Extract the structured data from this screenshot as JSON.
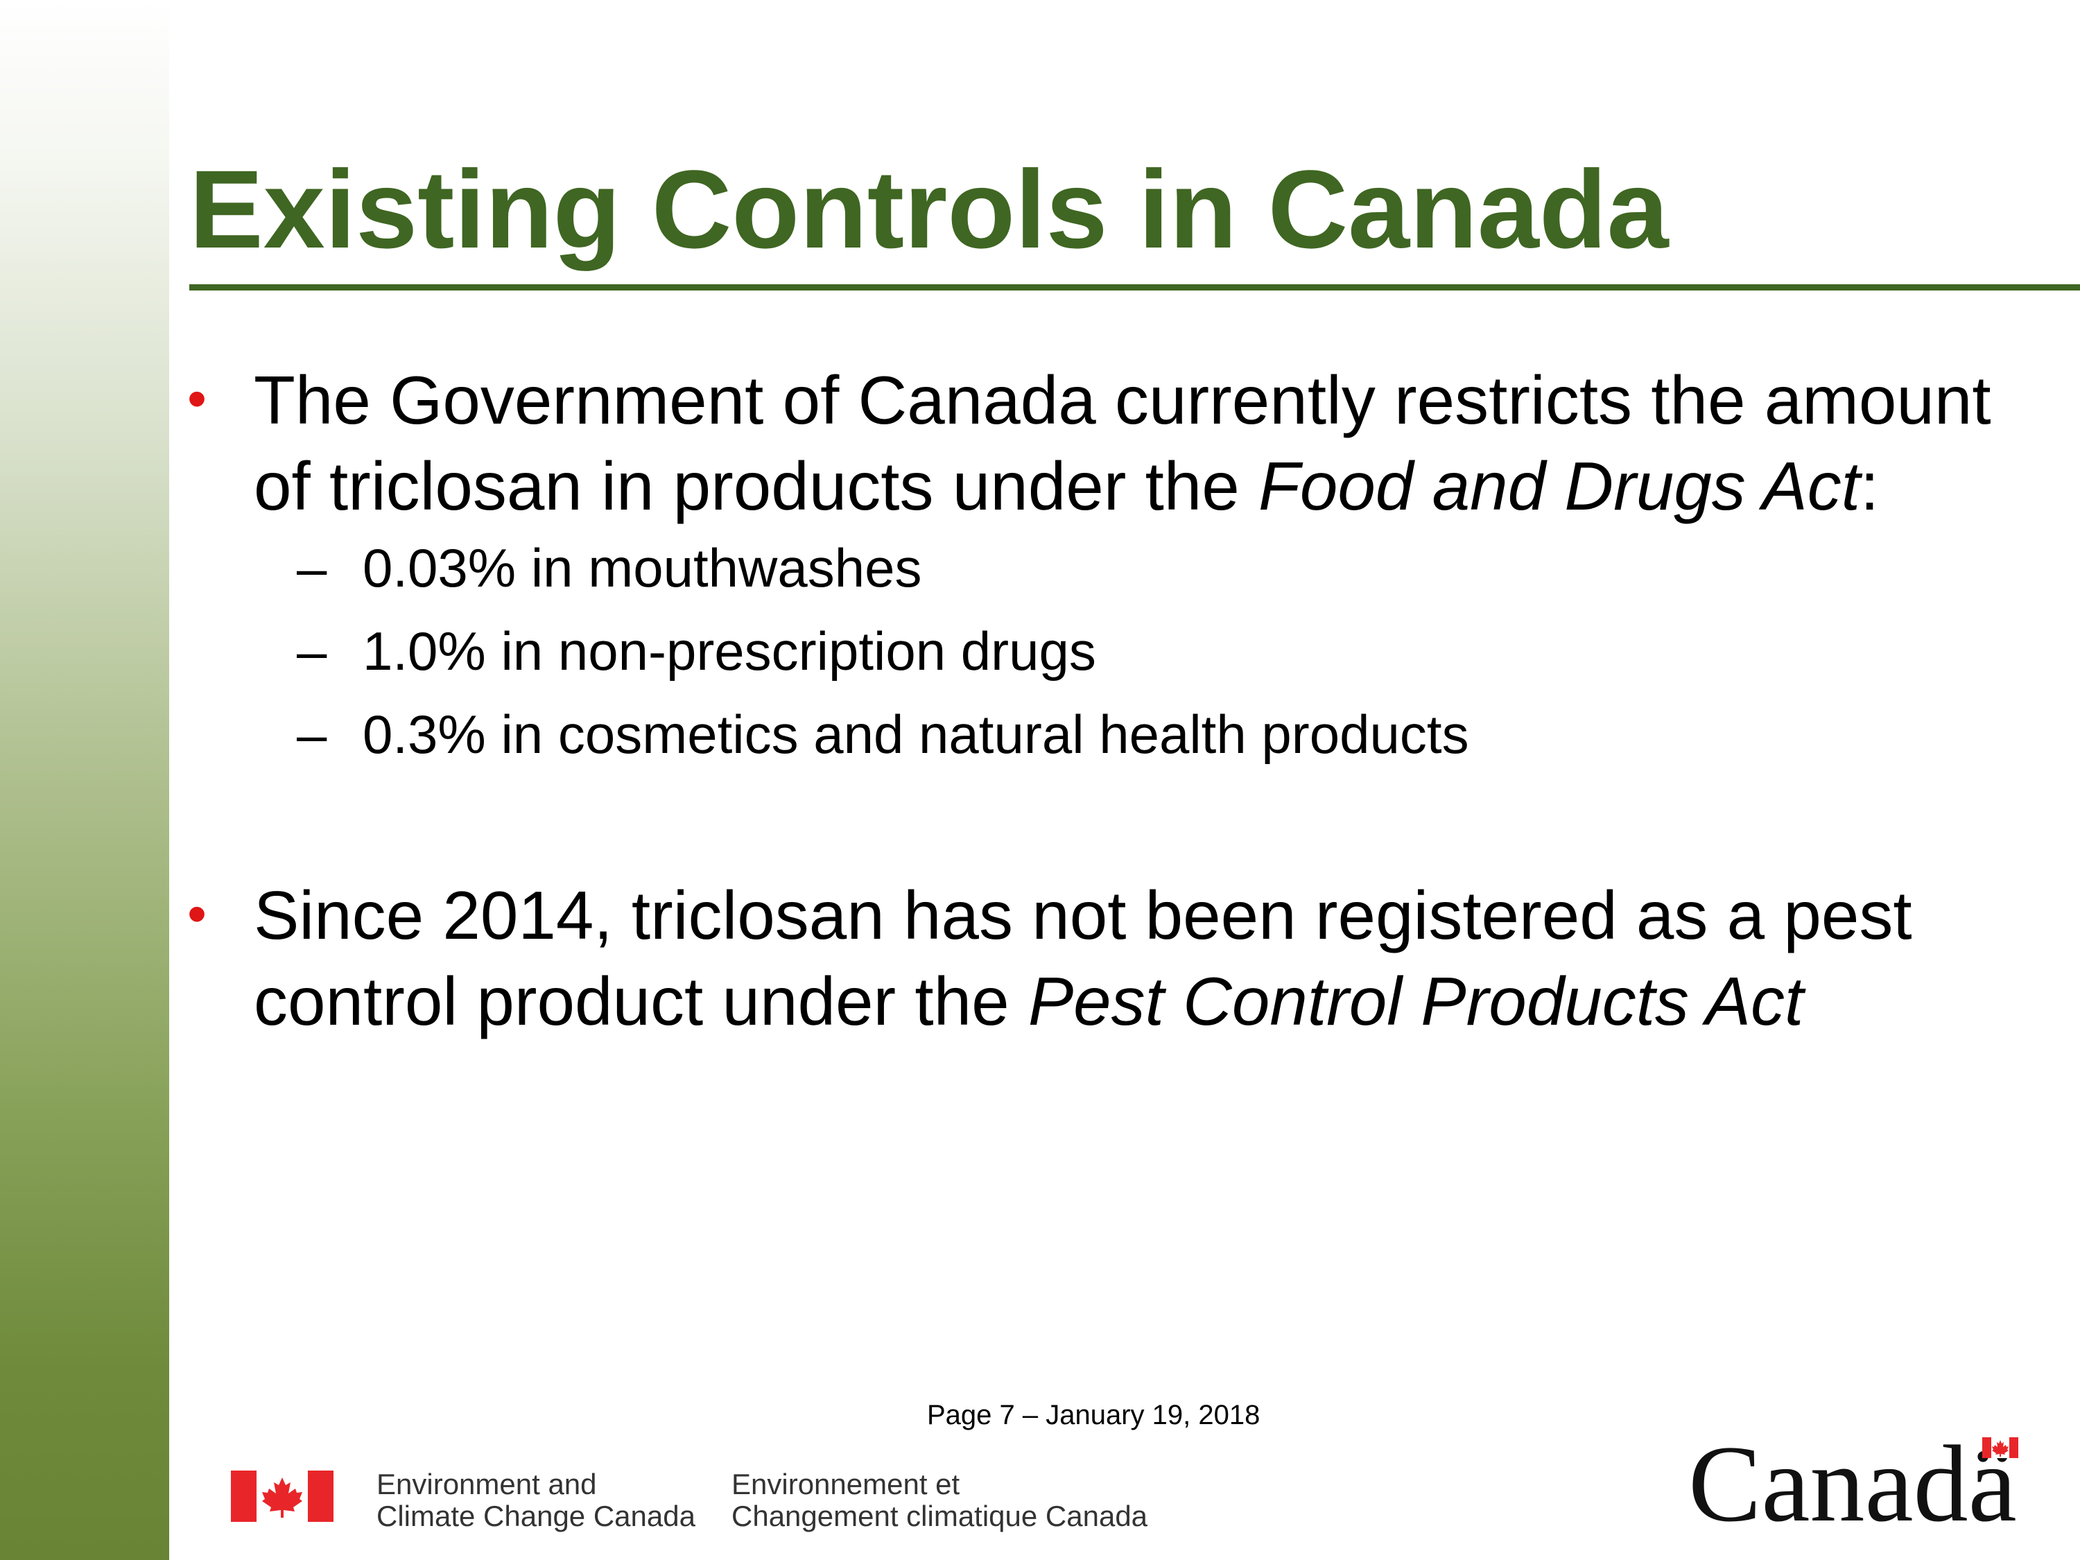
{
  "slide": {
    "title": "Existing Controls in Canada",
    "bullets": [
      {
        "text_before": "The Government of Canada currently restricts the amount of triclosan in products under the ",
        "text_italic": "Food and Drugs Act",
        "text_after": ":",
        "sub_items": [
          "0.03% in mouthwashes",
          "1.0% in non-prescription drugs",
          "0.3% in cosmetics and natural health products"
        ]
      },
      {
        "text_before": "Since 2014, triclosan has not been registered as a pest control product under the ",
        "text_italic": "Pest Control Products Act",
        "text_after": ""
      }
    ],
    "bullet_symbol": "•",
    "dash_symbol": "–"
  },
  "footer": {
    "page_label": "Page 7 – January 19, 2018",
    "department_english": [
      "Environment and",
      "Climate Change Canada"
    ],
    "department_french": [
      "Environnement et",
      "Changement climatique Canada"
    ],
    "wordmark": "Canadä"
  },
  "colors": {
    "title_green": "#3f6622",
    "bullet_red": "#e01515",
    "flag_red": "#e8262a"
  },
  "icons": {
    "flag": "canada-flag-icon",
    "wordmark_flag": "canada-wordmark-flag-icon"
  }
}
